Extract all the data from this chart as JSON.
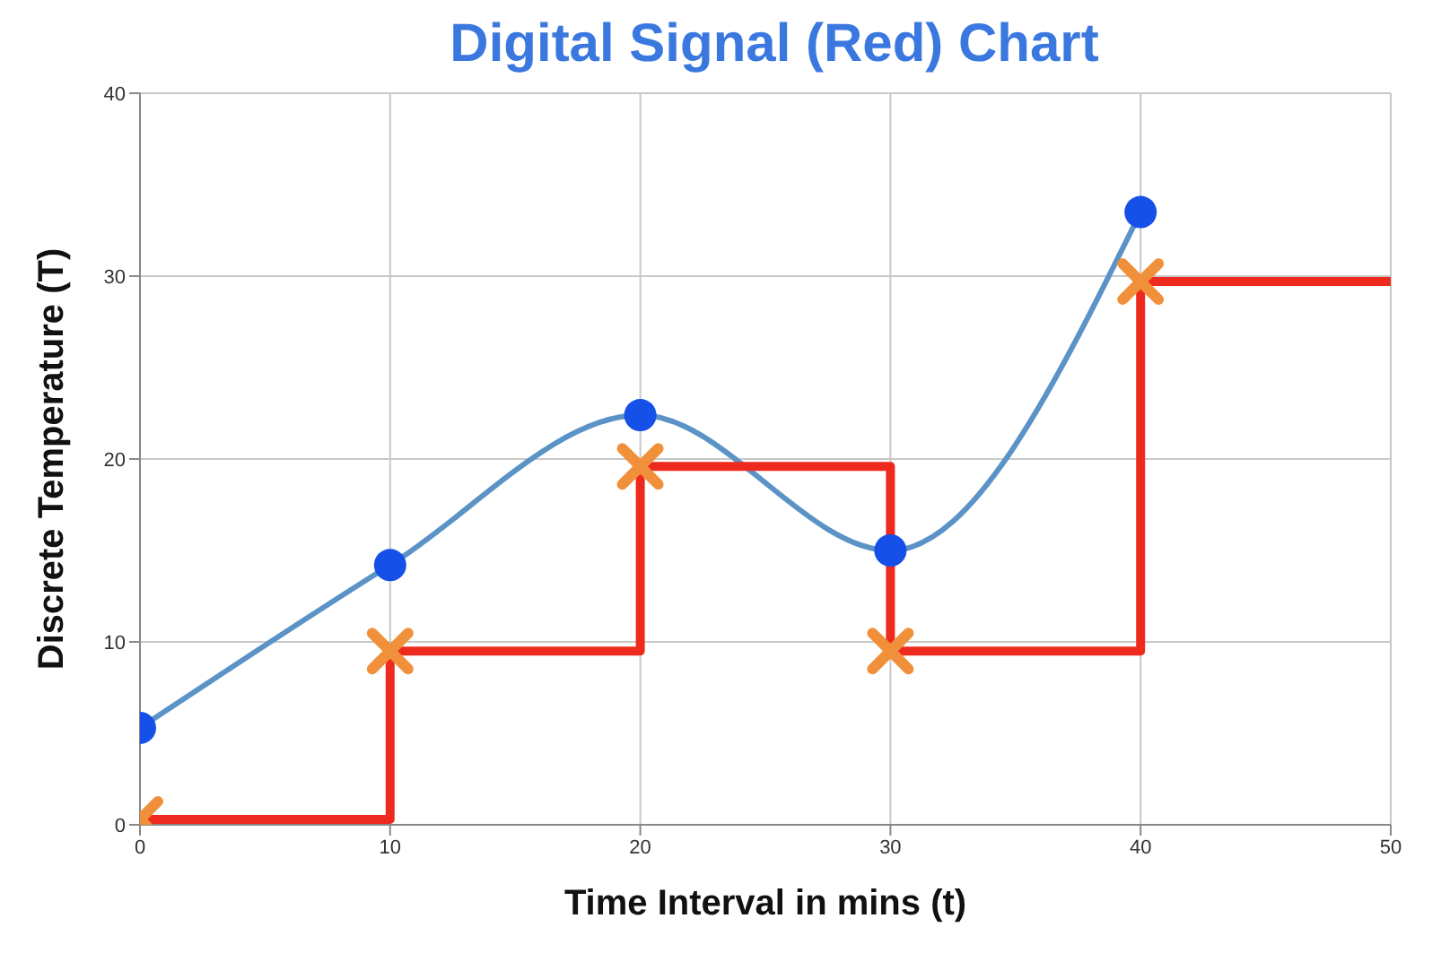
{
  "chart_data": {
    "type": "line",
    "title": "Digital Signal (Red) Chart",
    "xlabel": "Time Interval in mins (t)",
    "ylabel": "Discrete Temperature (T)",
    "xlim": [
      0,
      50
    ],
    "ylim": [
      0,
      40
    ],
    "xticks": [
      0,
      10,
      20,
      30,
      40,
      50
    ],
    "yticks": [
      0,
      10,
      20,
      30,
      40
    ],
    "grid": true,
    "legend": false,
    "series": [
      {
        "color": "#5b93c7",
        "marker": "none",
        "x": [
          0,
          10,
          20,
          30,
          40
        ],
        "values": [
          5.3,
          14.2,
          22.4,
          15,
          33.5
        ]
      },
      {
        "type": "scatter",
        "color": "#1550e8",
        "marker": "circle",
        "x": [
          0,
          10,
          20,
          30,
          40
        ],
        "values": [
          5.3,
          14.2,
          22.4,
          15,
          33.5
        ]
      },
      {
        "type": "step",
        "color": "#ee2a1e",
        "marker": "none",
        "x": [
          0,
          10,
          20,
          30,
          40,
          50
        ],
        "values": [
          0.3,
          9.5,
          19.6,
          9.5,
          29.7,
          29.7
        ]
      },
      {
        "type": "scatter",
        "color": "#f0903a",
        "marker": "cross",
        "x": [
          0,
          10,
          20,
          30,
          40
        ],
        "values": [
          0.3,
          9.5,
          19.6,
          9.5,
          29.7
        ]
      }
    ]
  }
}
